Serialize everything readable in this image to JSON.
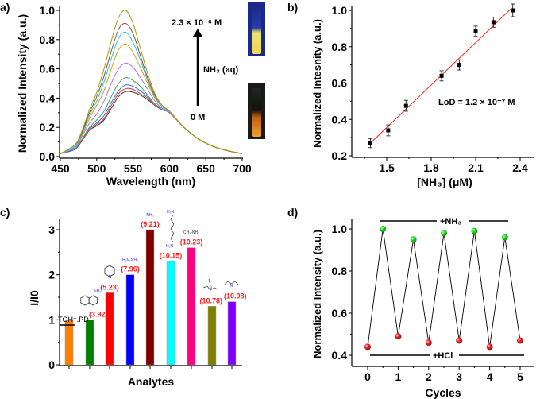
{
  "panels": {
    "a": "a)",
    "b": "b)",
    "c": "c)",
    "d": "d)"
  },
  "chart_data": [
    {
      "panel": "a)",
      "type": "line",
      "xlabel": "Wavelength (nm)",
      "ylabel": "Normalized Intensity (a.u.)",
      "xlim": [
        450,
        700
      ],
      "ylim": [
        0,
        1.0
      ],
      "xticks": [
        "450",
        "500",
        "550",
        "600",
        "650",
        "700"
      ],
      "yticks": [
        "0.0",
        "0.2",
        "0.4",
        "0.6",
        "0.8",
        "1.0"
      ],
      "annotations": {
        "top": "2.3 × 10⁻⁶ M",
        "middle": "NH₃ (aq)",
        "bottom": "0 M"
      },
      "x": [
        450,
        470,
        480,
        490,
        500,
        510,
        520,
        530,
        540,
        550,
        560,
        570,
        580,
        590,
        600,
        620,
        640,
        660,
        680,
        700
      ],
      "series": [
        {
          "color": "#3a3a3a",
          "values": [
            0.02,
            0.05,
            0.11,
            0.18,
            0.21,
            0.25,
            0.33,
            0.41,
            0.445,
            0.44,
            0.42,
            0.39,
            0.35,
            0.32,
            0.3,
            0.2,
            0.12,
            0.07,
            0.04,
            0.02
          ]
        },
        {
          "color": "#e8302a",
          "values": [
            0.02,
            0.05,
            0.11,
            0.18,
            0.22,
            0.26,
            0.35,
            0.43,
            0.465,
            0.46,
            0.43,
            0.4,
            0.35,
            0.32,
            0.3,
            0.2,
            0.12,
            0.07,
            0.04,
            0.02
          ]
        },
        {
          "color": "#2a6fe0",
          "values": [
            0.02,
            0.05,
            0.12,
            0.19,
            0.23,
            0.28,
            0.37,
            0.45,
            0.49,
            0.48,
            0.45,
            0.41,
            0.36,
            0.32,
            0.3,
            0.2,
            0.12,
            0.07,
            0.04,
            0.02
          ]
        },
        {
          "color": "#3aa060",
          "values": [
            0.02,
            0.06,
            0.12,
            0.2,
            0.25,
            0.31,
            0.41,
            0.5,
            0.54,
            0.52,
            0.48,
            0.42,
            0.36,
            0.33,
            0.3,
            0.2,
            0.12,
            0.07,
            0.04,
            0.02
          ]
        },
        {
          "color": "#b070e8",
          "values": [
            0.02,
            0.06,
            0.14,
            0.23,
            0.29,
            0.38,
            0.5,
            0.6,
            0.64,
            0.61,
            0.54,
            0.46,
            0.38,
            0.33,
            0.3,
            0.2,
            0.12,
            0.07,
            0.04,
            0.02
          ]
        },
        {
          "color": "#e0a010",
          "values": [
            0.02,
            0.07,
            0.15,
            0.26,
            0.35,
            0.45,
            0.6,
            0.73,
            0.77,
            0.71,
            0.61,
            0.5,
            0.4,
            0.34,
            0.31,
            0.2,
            0.12,
            0.07,
            0.04,
            0.02
          ]
        },
        {
          "color": "#20c8d8",
          "values": [
            0.02,
            0.07,
            0.16,
            0.28,
            0.38,
            0.51,
            0.67,
            0.81,
            0.85,
            0.78,
            0.66,
            0.52,
            0.41,
            0.34,
            0.31,
            0.2,
            0.12,
            0.07,
            0.04,
            0.02
          ]
        },
        {
          "color": "#8b4a4a",
          "values": [
            0.02,
            0.08,
            0.17,
            0.3,
            0.41,
            0.55,
            0.72,
            0.87,
            0.91,
            0.84,
            0.69,
            0.54,
            0.42,
            0.35,
            0.31,
            0.2,
            0.12,
            0.07,
            0.04,
            0.02
          ]
        },
        {
          "color": "#a0a000",
          "values": [
            0.02,
            0.08,
            0.18,
            0.32,
            0.44,
            0.6,
            0.79,
            0.95,
            1.0,
            0.91,
            0.74,
            0.57,
            0.43,
            0.35,
            0.31,
            0.2,
            0.12,
            0.07,
            0.04,
            0.02
          ]
        }
      ]
    },
    {
      "panel": "b)",
      "type": "scatter",
      "xlabel": "[NH₃] (μM)",
      "ylabel": "Normalized Intesnity (a.u.)",
      "xlim": [
        1.26,
        2.52
      ],
      "ylim": [
        0.2,
        1.0
      ],
      "xticks": [
        "1.5",
        "1.8",
        "2.1",
        "2.4"
      ],
      "yticks": [
        "0.2",
        "0.4",
        "0.6",
        "0.8",
        "1.0"
      ],
      "annotation": "LoD = 1.2 × 10⁻⁷ M",
      "x": [
        1.39,
        1.51,
        1.63,
        1.87,
        1.99,
        2.1,
        2.22,
        2.35
      ],
      "y": [
        0.27,
        0.34,
        0.475,
        0.64,
        0.7,
        0.885,
        0.935,
        1.0
      ],
      "error": [
        0.025,
        0.03,
        0.03,
        0.028,
        0.028,
        0.028,
        0.028,
        0.035
      ],
      "fit": {
        "x": [
          1.39,
          2.34
        ],
        "y": [
          0.27,
          1.01
        ],
        "color": "#ff2020"
      }
    },
    {
      "panel": "c)",
      "type": "bar",
      "xlabel": "Analytes",
      "ylabel": "I/I0",
      "ylim": [
        0,
        3.2
      ],
      "yticks": [
        "0",
        "1",
        "2",
        "3"
      ],
      "categories": [
        "TGH⁺.PD",
        "1-naphthylamine",
        "pyridine",
        "hydrazine",
        "ammonia",
        "cadaverine",
        "methylamine",
        "triethylamine",
        "diethylamine"
      ],
      "values": [
        1.0,
        1.0,
        1.6,
        2.0,
        3.0,
        2.3,
        2.6,
        1.3,
        1.4
      ],
      "colors": [
        "#ff8000",
        "#008000",
        "#ff0000",
        "#0000ff",
        "#800000",
        "#00ffff",
        "#ff0080",
        "#808000",
        "#8000ff"
      ],
      "pka_labels": [
        "",
        "(3.92)",
        "(5.23)",
        "(7.96)",
        "(9.21)",
        "(10.15)",
        "(10.23)",
        "(10.78)",
        "(10.98)"
      ],
      "structure_labels": {
        "control": "TGH⁺.PD",
        "naphthylamine": "NH₂",
        "pyridine": "N",
        "hydrazine": "H₂N-NH₂",
        "ammonia": "NH₃",
        "cadaverine_top": "H₂N",
        "cadaverine_bottom": "H₂N",
        "methylamine": "CH₃-NH₂",
        "triethylamine": "N",
        "diethylamine": "N"
      }
    },
    {
      "panel": "d)",
      "type": "line",
      "xlabel": "Cycles",
      "ylabel": "Normalized Intensity (a.u.)",
      "xlim": [
        0,
        5
      ],
      "ylim": [
        0.4,
        1.0
      ],
      "xticks": [
        "0",
        "1",
        "2",
        "3",
        "4",
        "5"
      ],
      "yticks": [
        "0.4",
        "0.6",
        "0.8",
        "1.0"
      ],
      "x": [
        0,
        0.5,
        1,
        1.5,
        2,
        2.5,
        3,
        3.5,
        4,
        4.5,
        5
      ],
      "y": [
        0.44,
        1.0,
        0.49,
        0.95,
        0.46,
        0.98,
        0.47,
        0.99,
        0.44,
        0.96,
        0.47
      ],
      "high_color": "#22dd22",
      "low_color": "#ee2222",
      "annotations": {
        "top": "+NH₃",
        "bottom": "+HCl"
      }
    }
  ]
}
